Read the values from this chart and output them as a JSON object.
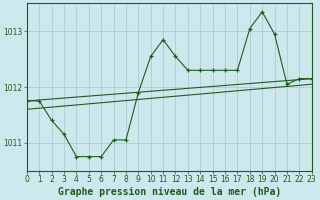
{
  "title": "Graphe pression niveau de la mer (hPa)",
  "background_color": "#cce8ec",
  "grid_color": "#aacdd4",
  "line_color": "#1e5c1e",
  "xlim": [
    0,
    23
  ],
  "ylim": [
    1010.5,
    1013.5
  ],
  "yticks": [
    1011,
    1012,
    1013
  ],
  "xticks": [
    0,
    1,
    2,
    3,
    4,
    5,
    6,
    7,
    8,
    9,
    10,
    11,
    12,
    13,
    14,
    15,
    16,
    17,
    18,
    19,
    20,
    21,
    22,
    23
  ],
  "series1_x": [
    0,
    1,
    2,
    3,
    4,
    5,
    6,
    7,
    8,
    9,
    10,
    11,
    12,
    13,
    14,
    15,
    16,
    17,
    18,
    19,
    20,
    21,
    22,
    23
  ],
  "series1_y": [
    1011.75,
    1011.75,
    1011.4,
    1011.15,
    1010.75,
    1010.75,
    1010.75,
    1011.05,
    1011.05,
    1011.9,
    1012.55,
    1012.85,
    1012.55,
    1012.3,
    1012.3,
    1012.3,
    1012.3,
    1012.3,
    1013.05,
    1013.35,
    1012.95,
    1012.05,
    1012.15,
    1012.15
  ],
  "series2_x": [
    0,
    23
  ],
  "series2_y": [
    1011.75,
    1012.15
  ],
  "series3_x": [
    0,
    23
  ],
  "series3_y": [
    1011.6,
    1012.05
  ],
  "tick_fontsize": 5.5,
  "label_fontsize": 7,
  "label_color": "#1e5c1e"
}
